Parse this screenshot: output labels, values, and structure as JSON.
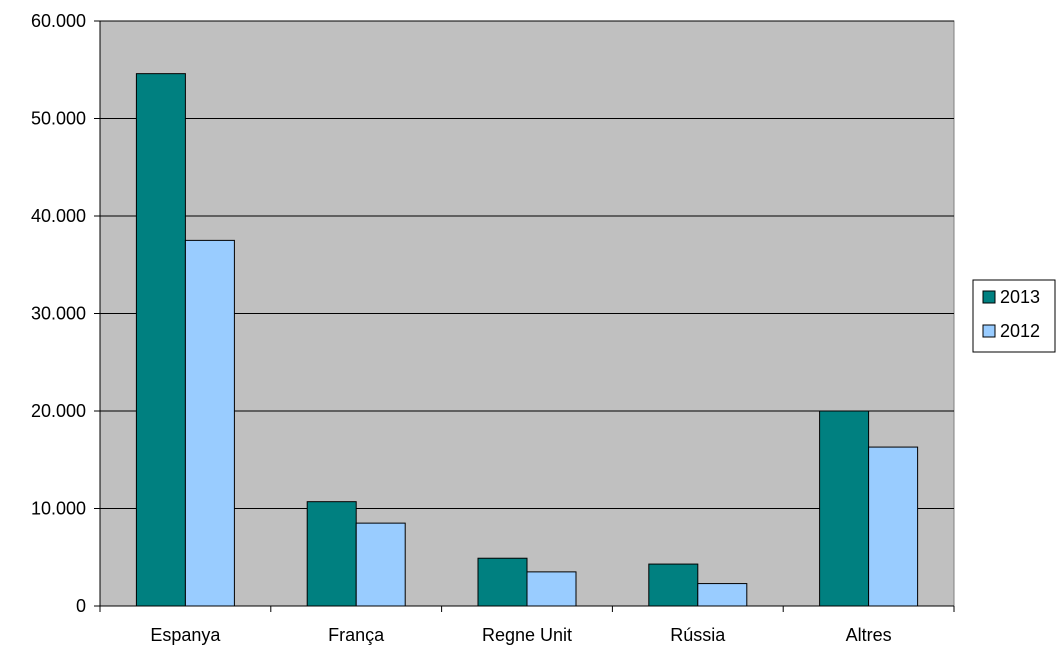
{
  "chart_data": {
    "type": "bar",
    "title": "",
    "xlabel": "",
    "ylabel": "",
    "categories": [
      "Espanya",
      "França",
      "Regne Unit",
      "Rússia",
      "Altres"
    ],
    "series": [
      {
        "name": "2013",
        "color": "#008080",
        "values": [
          54600,
          10700,
          4900,
          4300,
          20000
        ]
      },
      {
        "name": "2012",
        "color": "#99CCFF",
        "values": [
          37500,
          8500,
          3500,
          2300,
          16300
        ]
      }
    ],
    "ylim": [
      0,
      60000
    ],
    "yticks": [
      0,
      10000,
      20000,
      30000,
      40000,
      50000,
      60000
    ],
    "ytick_labels": [
      "0",
      "10.000",
      "20.000",
      "30.000",
      "40.000",
      "50.000",
      "60.000"
    ],
    "plot_background": "#C0C0C0",
    "grid": true,
    "legend_position": "right"
  }
}
